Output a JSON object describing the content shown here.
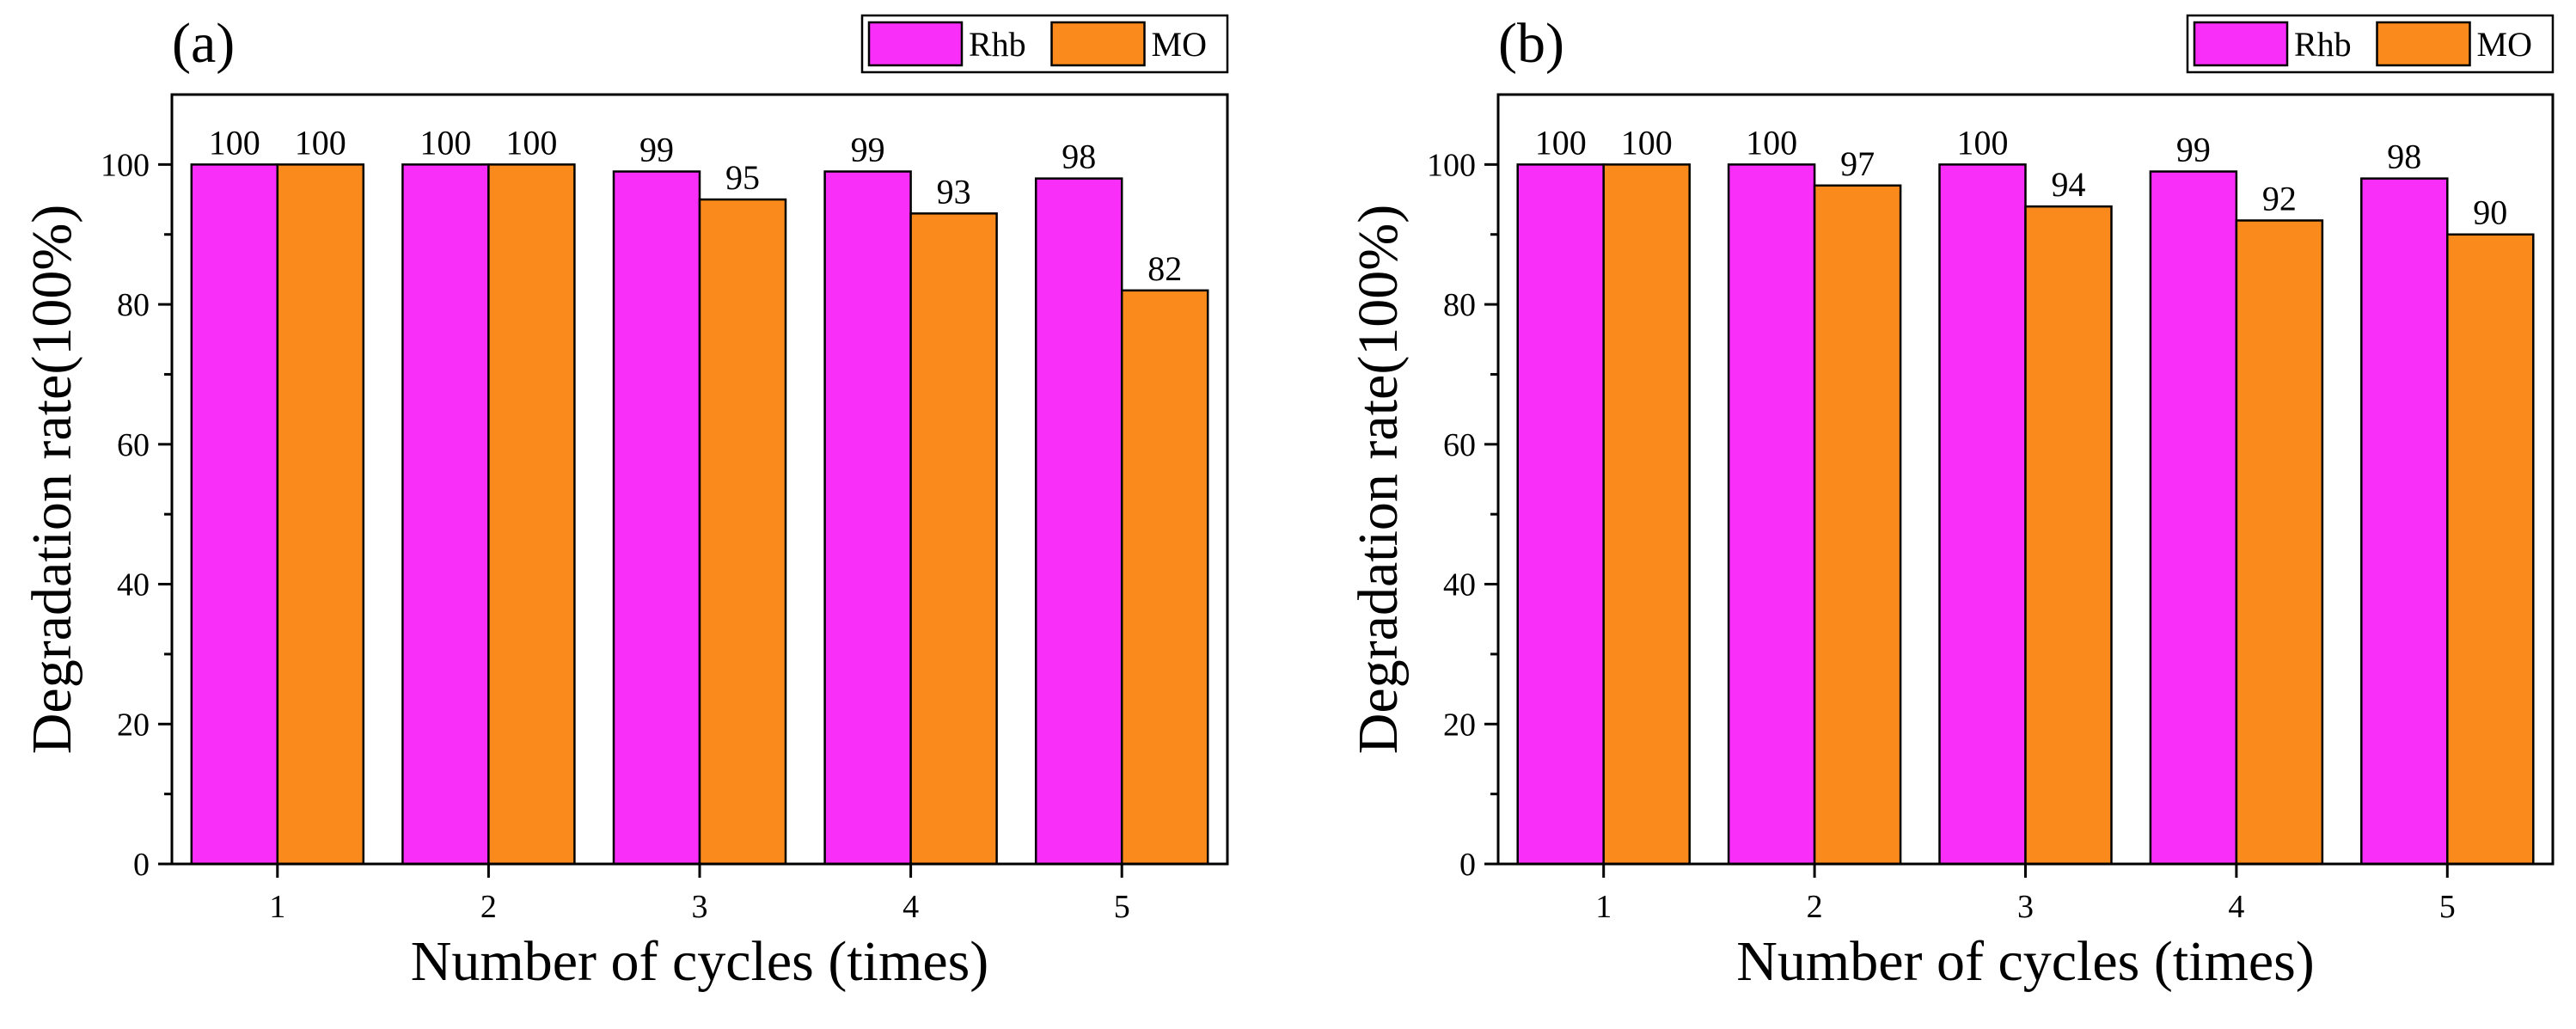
{
  "chart_data": [
    {
      "type": "bar",
      "panel_label": "(a)",
      "categories": [
        "1",
        "2",
        "3",
        "4",
        "5"
      ],
      "series": [
        {
          "name": "Rhb",
          "color": "#f92ff9",
          "values": [
            100,
            100,
            99,
            99,
            98
          ]
        },
        {
          "name": "MO",
          "color": "#fb8a1d",
          "values": [
            100,
            100,
            95,
            93,
            82
          ]
        }
      ],
      "data_labels": [
        [
          "100",
          "100",
          "99",
          "99",
          "98"
        ],
        [
          "100",
          "100",
          "95",
          "93",
          "82"
        ]
      ],
      "xlabel": "Number of cycles (times)",
      "ylabel": "Degradation rate(100%)",
      "ylim": [
        0,
        110
      ],
      "yticks": [
        0,
        20,
        40,
        60,
        80,
        100
      ],
      "ytick_labels": [
        "0",
        "20",
        "40",
        "60",
        "80",
        "100"
      ],
      "legend_position": "top-right",
      "grid": false
    },
    {
      "type": "bar",
      "panel_label": "(b)",
      "categories": [
        "1",
        "2",
        "3",
        "4",
        "5"
      ],
      "series": [
        {
          "name": "Rhb",
          "color": "#f92ff9",
          "values": [
            100,
            100,
            100,
            99,
            98
          ]
        },
        {
          "name": "MO",
          "color": "#fb8a1d",
          "values": [
            100,
            97,
            94,
            92,
            90
          ]
        }
      ],
      "data_labels": [
        [
          "100",
          "100",
          "100",
          "99",
          "98"
        ],
        [
          "100",
          "97",
          "94",
          "92",
          "90"
        ]
      ],
      "xlabel": "Number of cycles (times)",
      "ylabel": "Degradation rate(100%)",
      "ylim": [
        0,
        110
      ],
      "yticks": [
        0,
        20,
        40,
        60,
        80,
        100
      ],
      "ytick_labels": [
        "0",
        "20",
        "40",
        "60",
        "80",
        "100"
      ],
      "legend_position": "top-right",
      "grid": false
    }
  ]
}
